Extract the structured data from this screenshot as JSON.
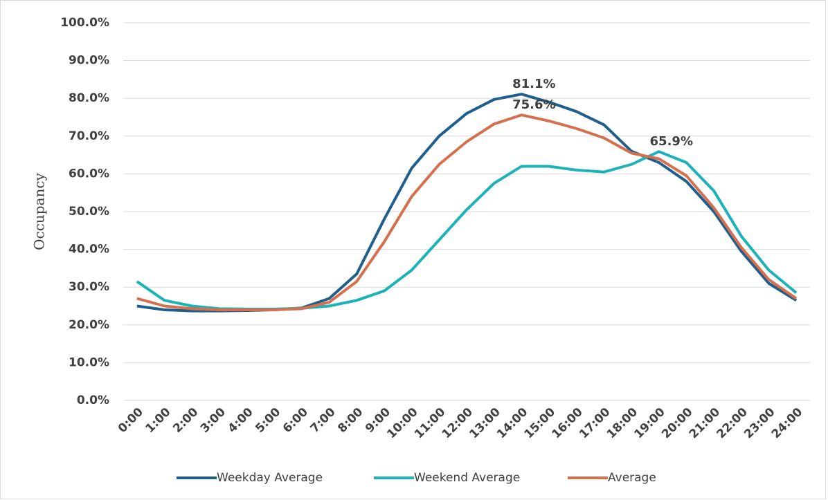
{
  "chart_data": {
    "type": "line",
    "y_label": "Occupancy",
    "categories": [
      "0:00",
      "1:00",
      "2:00",
      "3:00",
      "4:00",
      "5:00",
      "6:00",
      "7:00",
      "8:00",
      "9:00",
      "10:00",
      "11:00",
      "12:00",
      "13:00",
      "14:00",
      "15:00",
      "16:00",
      "17:00",
      "18:00",
      "19:00",
      "20:00",
      "21:00",
      "22:00",
      "23:00",
      "24:00"
    ],
    "series": [
      {
        "name": "Weekday Average",
        "color": "#1f5f8e",
        "values": [
          25,
          24,
          23.7,
          23.7,
          23.8,
          24,
          24.5,
          27,
          33.5,
          48,
          61.5,
          70,
          76,
          79.7,
          81.1,
          79,
          76.5,
          73,
          66,
          63,
          58,
          50,
          39.5,
          31,
          26.5
        ],
        "value_labels": [
          null,
          null,
          null,
          null,
          null,
          null,
          null,
          null,
          null,
          null,
          null,
          null,
          null,
          null,
          "81.1%",
          null,
          null,
          null,
          null,
          null,
          null,
          null,
          null,
          null,
          null
        ]
      },
      {
        "name": "Weekend Average",
        "color": "#1bb2b8",
        "values": [
          31.5,
          26.5,
          25,
          24.3,
          24.2,
          24.2,
          24.4,
          25,
          26.5,
          29,
          34.5,
          42.5,
          50.5,
          57.5,
          62,
          62,
          61,
          60.5,
          62.5,
          65.9,
          63,
          55.5,
          43.5,
          34.5,
          28.5
        ],
        "value_labels": [
          null,
          null,
          null,
          null,
          null,
          null,
          null,
          null,
          null,
          null,
          null,
          null,
          null,
          null,
          null,
          null,
          null,
          null,
          null,
          "65.9%",
          null,
          null,
          null,
          null,
          null
        ]
      },
      {
        "name": "Average",
        "color": "#d56f4e",
        "values": [
          27,
          25,
          24.3,
          24,
          24,
          24,
          24.3,
          26,
          31.5,
          42,
          54,
          62.5,
          68.5,
          73.2,
          75.6,
          74,
          72,
          69.5,
          65.5,
          64,
          59.5,
          51,
          40.5,
          32,
          27
        ],
        "value_labels": [
          null,
          null,
          null,
          null,
          null,
          null,
          null,
          null,
          null,
          null,
          null,
          null,
          null,
          null,
          "75.6%",
          null,
          null,
          null,
          null,
          null,
          null,
          null,
          null,
          null,
          null
        ]
      }
    ],
    "ylim": [
      0,
      100
    ],
    "yticks": [
      {
        "value": 0,
        "label": "0.0%"
      },
      {
        "value": 10,
        "label": "10.0%"
      },
      {
        "value": 20,
        "label": "20.0%"
      },
      {
        "value": 30,
        "label": "30.0%"
      },
      {
        "value": 40,
        "label": "40.0%"
      },
      {
        "value": 50,
        "label": "50.0%"
      },
      {
        "value": 60,
        "label": "60.0%"
      },
      {
        "value": 70,
        "label": "70.0%"
      },
      {
        "value": 80,
        "label": "80.0%"
      },
      {
        "value": 90,
        "label": "90.0%"
      },
      {
        "value": 100,
        "label": "100.0%"
      }
    ],
    "grid": true,
    "legend": "bottom"
  }
}
